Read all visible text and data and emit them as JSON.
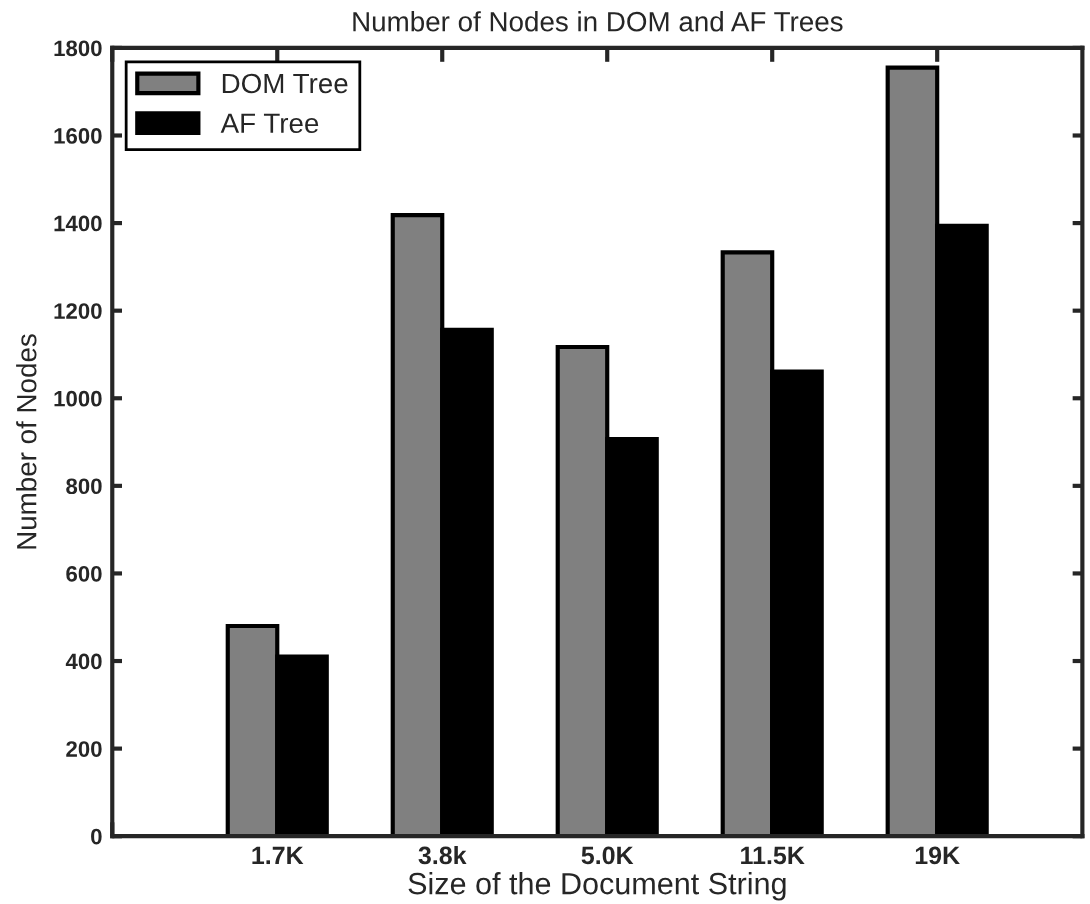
{
  "chart_data": {
    "type": "bar",
    "title": "Number of Nodes in DOM and AF Trees",
    "xlabel": "Size of the Document String",
    "ylabel": "Number of Nodes",
    "categories": [
      null,
      "1.7K",
      "3.8k",
      "5.0K",
      "11.5K",
      "19K"
    ],
    "series": [
      {
        "name": "DOM Tree",
        "color": "#808080",
        "values": [
          null,
          480,
          1418,
          1117,
          1333,
          1755
        ]
      },
      {
        "name": "AF Tree",
        "color": "#000000",
        "values": [
          null,
          410,
          1156,
          907,
          1061,
          1394
        ]
      }
    ],
    "ylim": [
      0,
      1800
    ],
    "yticks": [
      0,
      200,
      400,
      600,
      800,
      1000,
      1200,
      1400,
      1600,
      1800
    ],
    "legend": "top left",
    "grid": false
  }
}
